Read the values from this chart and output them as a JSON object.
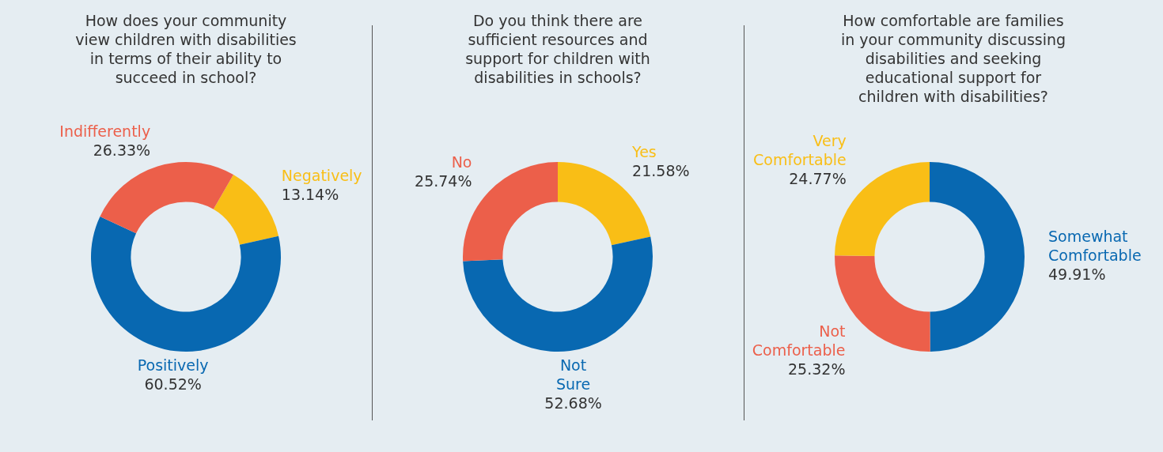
{
  "chart_data": [
    {
      "type": "donut",
      "title": "How does your community view children with disabilities in terms of their ability to succeed in school?",
      "categories": [
        "Negatively",
        "Positively",
        "Indifferently"
      ],
      "values": [
        13.14,
        60.52,
        26.33
      ],
      "value_labels": [
        "13.14%",
        "60.52%",
        "26.33%"
      ],
      "colors": [
        "#f9be16",
        "#0868b1",
        "#ec5f4a"
      ]
    },
    {
      "type": "donut",
      "title": "Do you think there are sufficient resources and support for children with disabilities in schools?",
      "categories": [
        "Yes",
        "Not Sure",
        "No"
      ],
      "values": [
        21.58,
        52.68,
        25.74
      ],
      "value_labels": [
        "21.58%",
        "52.68%",
        "25.74%"
      ],
      "colors": [
        "#f9be16",
        "#0868b1",
        "#ec5f4a"
      ]
    },
    {
      "type": "donut",
      "title": "How comfortable are families in your community discussing disabilities and seeking educational support for children with disabilities?",
      "categories": [
        "Somewhat Comfortable",
        "Not Comfortable",
        "Very Comfortable"
      ],
      "values": [
        49.91,
        25.32,
        24.77
      ],
      "value_labels": [
        "49.91%",
        "25.32%",
        "24.77%"
      ],
      "colors": [
        "#0868b1",
        "#ec5f4a",
        "#f9be16"
      ]
    }
  ]
}
